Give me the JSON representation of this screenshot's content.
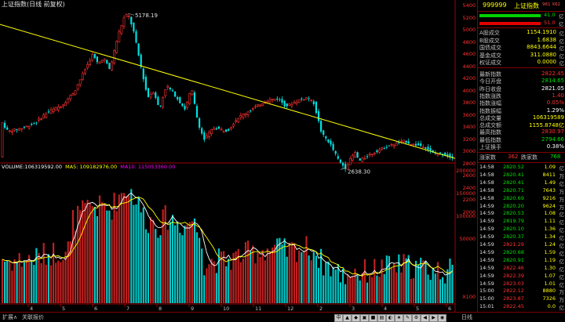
{
  "header": {
    "title": "上证指数(日线 前复权)"
  },
  "chart_data": {
    "type": "candlestick",
    "series": [
      {
        "name": "上证指数"
      }
    ],
    "price_labels": [
      "5400",
      "5200",
      "5000",
      "4800",
      "4600",
      "4400",
      "4200",
      "4000",
      "3800",
      "3600",
      "3400",
      "3200",
      "3000",
      "2800",
      "2600",
      "2400",
      "2200",
      "2000"
    ],
    "high_marker": "5178.19",
    "low_marker": "2638.30",
    "x_labels": [
      "4",
      "5",
      "6",
      "7",
      "8",
      "9",
      "10",
      "11",
      "12",
      "2",
      "3",
      "4",
      "5",
      "6"
    ],
    "volume_header": {
      "vol": "VOLUME:106319592.00",
      "ma5": "MA5: 109182976.00",
      "ma10": "MA10: 115053360.00"
    },
    "volume_labels": [
      "200000",
      "150000",
      "100000",
      "50000",
      "X100"
    ],
    "colors": {
      "up": "#ff3030",
      "down": "#00e0e0",
      "trend": "#ffff00",
      "ma5": "#ffffff",
      "ma10": "#ffff00"
    }
  },
  "panel": {
    "code": "999999",
    "name": "上证指数",
    "extra": "961 X62",
    "bar_top_val": "41.0",
    "bar_bot_val": "51.0",
    "bar_top_unit": "亿",
    "bar_bot_unit": "亿",
    "rows1": [
      {
        "label": "A股成交",
        "value": "1154.1910",
        "unit": "亿"
      },
      {
        "label": "B股成交",
        "value": "1.6838",
        "unit": "亿"
      },
      {
        "label": "国债成交",
        "value": "8843.6644",
        "unit": "亿"
      },
      {
        "label": "基金成交",
        "value": "311.0880",
        "unit": "亿"
      },
      {
        "label": "权证成交",
        "value": "0.0000",
        "unit": "亿"
      }
    ],
    "rows2": [
      {
        "label": "最新指数",
        "value": "2822.45",
        "color": "red"
      },
      {
        "label": "今日开盘",
        "value": "2814.65",
        "color": "green"
      },
      {
        "label": "昨日收盘",
        "value": "2821.05",
        "color": "white"
      },
      {
        "label": "指数涨跌",
        "value": "1.40",
        "color": "red"
      },
      {
        "label": "指数涨幅",
        "value": "0.05%",
        "color": "red"
      },
      {
        "label": "指数振幅",
        "value": "1.29%",
        "color": "white"
      },
      {
        "label": "总成交量",
        "value": "106319589",
        "color": "yellow"
      },
      {
        "label": "总成交额",
        "value": "1155.8748亿",
        "color": "yellow"
      },
      {
        "label": "最高指数",
        "value": "2830.97",
        "color": "red"
      },
      {
        "label": "最低指数",
        "value": "2794.66",
        "color": "green"
      },
      {
        "label": "上证换手",
        "value": "0.38%",
        "color": "white"
      }
    ],
    "breadth": {
      "up_label": "涨家数",
      "up_value": "362",
      "down_label": "跌家数",
      "down_value": "768"
    },
    "ticks": [
      {
        "t": "14:58",
        "p": "2820.52",
        "v": "1.09",
        "u": "亿"
      },
      {
        "t": "14:58",
        "p": "2820.41",
        "v": "8411",
        "u": "万"
      },
      {
        "t": "14:58",
        "p": "2820.41",
        "v": "1.49",
        "u": "亿"
      },
      {
        "t": "14:58",
        "p": "2820.71",
        "v": "7643",
        "u": "万"
      },
      {
        "t": "14:58",
        "p": "2820.69",
        "v": "9216",
        "u": "万"
      },
      {
        "t": "14:59",
        "p": "2820.20",
        "v": "9624",
        "u": "万"
      },
      {
        "t": "14:59",
        "p": "2820.53",
        "v": "1.08",
        "u": "亿"
      },
      {
        "t": "14:59",
        "p": "2819.79",
        "v": "1.11",
        "u": "亿"
      },
      {
        "t": "14:59",
        "p": "2820.10",
        "v": "1.36",
        "u": "亿"
      },
      {
        "t": "14:59",
        "p": "2820.37",
        "v": "1.34",
        "u": "亿"
      },
      {
        "t": "14:59",
        "p": "2821.29",
        "v": "1.24",
        "u": "亿"
      },
      {
        "t": "14:59",
        "p": "2820.68",
        "v": "1.59",
        "u": "亿"
      },
      {
        "t": "14:59",
        "p": "2820.91",
        "v": "1.19",
        "u": "亿"
      },
      {
        "t": "14:59",
        "p": "2822.46",
        "v": "1.30",
        "u": "亿"
      },
      {
        "t": "14:59",
        "p": "2822.39",
        "v": "1.07",
        "u": "亿"
      },
      {
        "t": "14:59",
        "p": "2823.03",
        "v": "1.01",
        "u": "亿"
      },
      {
        "t": "15:00",
        "p": "2822.12",
        "v": "8880",
        "u": "万"
      },
      {
        "t": "15:00",
        "p": "2823.87",
        "v": "7326",
        "u": "万"
      },
      {
        "t": "15:01",
        "p": "2822.45",
        "v": "0.0",
        "u": "亿"
      }
    ]
  },
  "bottom": {
    "tab1": "扩展∧",
    "tab2": "关联报价",
    "period": "日线"
  }
}
